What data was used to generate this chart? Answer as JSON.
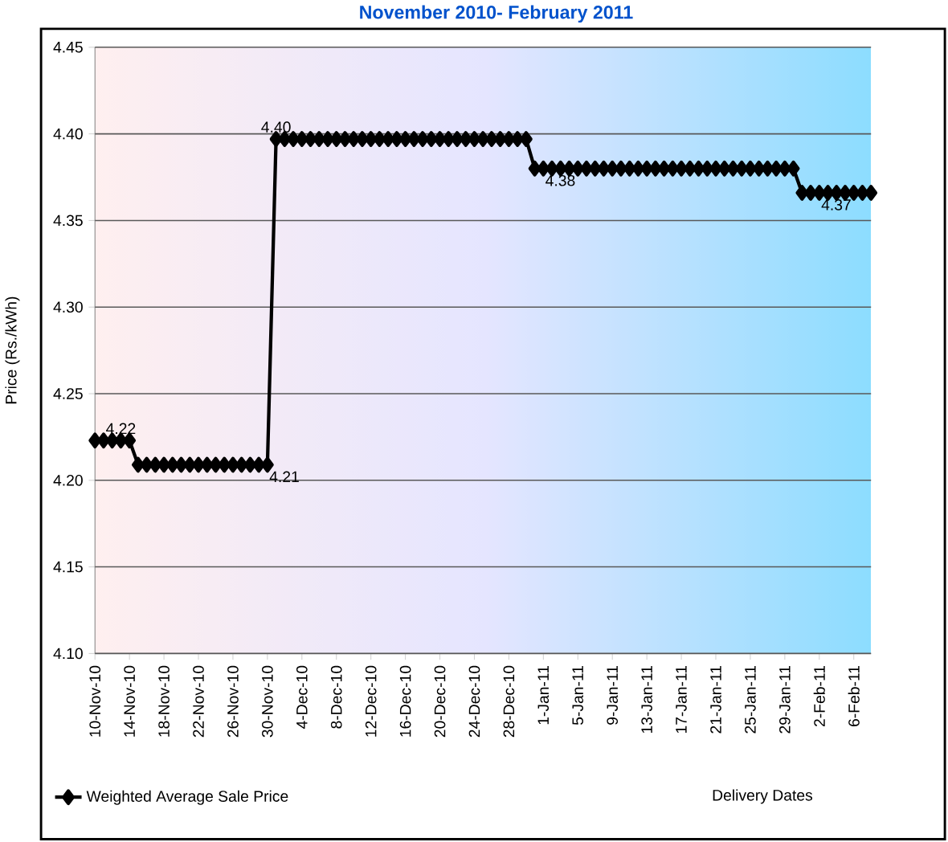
{
  "chart_data": {
    "type": "line",
    "title": "November 2010- February 2011",
    "xlabel": "Delivery Dates",
    "ylabel": "Price (Rs./kWh)",
    "x": [
      "2010-11-10",
      "2010-11-11",
      "2010-11-12",
      "2010-11-13",
      "2010-11-14",
      "2010-11-15",
      "2010-11-16",
      "2010-11-17",
      "2010-11-18",
      "2010-11-19",
      "2010-11-20",
      "2010-11-21",
      "2010-11-22",
      "2010-11-23",
      "2010-11-24",
      "2010-11-25",
      "2010-11-26",
      "2010-11-27",
      "2010-11-28",
      "2010-11-29",
      "2010-11-30",
      "2010-12-01",
      "2010-12-02",
      "2010-12-03",
      "2010-12-04",
      "2010-12-05",
      "2010-12-06",
      "2010-12-07",
      "2010-12-08",
      "2010-12-09",
      "2010-12-10",
      "2010-12-11",
      "2010-12-12",
      "2010-12-13",
      "2010-12-14",
      "2010-12-15",
      "2010-12-16",
      "2010-12-17",
      "2010-12-18",
      "2010-12-19",
      "2010-12-20",
      "2010-12-21",
      "2010-12-22",
      "2010-12-23",
      "2010-12-24",
      "2010-12-25",
      "2010-12-26",
      "2010-12-27",
      "2010-12-28",
      "2010-12-29",
      "2010-12-30",
      "2010-12-31",
      "2011-01-01",
      "2011-01-02",
      "2011-01-03",
      "2011-01-04",
      "2011-01-05",
      "2011-01-06",
      "2011-01-07",
      "2011-01-08",
      "2011-01-09",
      "2011-01-10",
      "2011-01-11",
      "2011-01-12",
      "2011-01-13",
      "2011-01-14",
      "2011-01-15",
      "2011-01-16",
      "2011-01-17",
      "2011-01-18",
      "2011-01-19",
      "2011-01-20",
      "2011-01-21",
      "2011-01-22",
      "2011-01-23",
      "2011-01-24",
      "2011-01-25",
      "2011-01-26",
      "2011-01-27",
      "2011-01-28",
      "2011-01-29",
      "2011-01-30",
      "2011-01-31",
      "2011-02-01",
      "2011-02-02",
      "2011-02-03",
      "2011-02-04",
      "2011-02-05",
      "2011-02-06",
      "2011-02-07",
      "2011-02-08"
    ],
    "series": [
      {
        "name": "Weighted Average Sale Price",
        "color": "#000000",
        "values": [
          4.223,
          4.223,
          4.223,
          4.223,
          4.223,
          4.209,
          4.209,
          4.209,
          4.209,
          4.209,
          4.209,
          4.209,
          4.209,
          4.209,
          4.209,
          4.209,
          4.209,
          4.209,
          4.209,
          4.209,
          4.209,
          4.397,
          4.397,
          4.397,
          4.397,
          4.397,
          4.397,
          4.397,
          4.397,
          4.397,
          4.397,
          4.397,
          4.397,
          4.397,
          4.397,
          4.397,
          4.397,
          4.397,
          4.397,
          4.397,
          4.397,
          4.397,
          4.397,
          4.397,
          4.397,
          4.397,
          4.397,
          4.397,
          4.397,
          4.397,
          4.397,
          4.38,
          4.38,
          4.38,
          4.38,
          4.38,
          4.38,
          4.38,
          4.38,
          4.38,
          4.38,
          4.38,
          4.38,
          4.38,
          4.38,
          4.38,
          4.38,
          4.38,
          4.38,
          4.38,
          4.38,
          4.38,
          4.38,
          4.38,
          4.38,
          4.38,
          4.38,
          4.38,
          4.38,
          4.38,
          4.38,
          4.38,
          4.366,
          4.366,
          4.366,
          4.366,
          4.366,
          4.366,
          4.366,
          4.366,
          4.366
        ],
        "value_labels": [
          null,
          null,
          null,
          "4.22",
          null,
          null,
          null,
          null,
          null,
          null,
          null,
          null,
          null,
          null,
          null,
          null,
          null,
          null,
          null,
          null,
          "4.21",
          "4.40",
          null,
          null,
          null,
          null,
          null,
          null,
          null,
          null,
          null,
          null,
          null,
          null,
          null,
          null,
          null,
          null,
          null,
          null,
          null,
          null,
          null,
          null,
          null,
          null,
          null,
          null,
          null,
          null,
          null,
          null,
          "4.38",
          null,
          null,
          null,
          null,
          null,
          null,
          null,
          null,
          null,
          null,
          null,
          null,
          null,
          null,
          null,
          null,
          null,
          null,
          null,
          null,
          null,
          null,
          null,
          null,
          null,
          null,
          null,
          null,
          null,
          null,
          null,
          "4.37",
          null,
          null,
          null,
          null,
          null,
          null
        ]
      }
    ],
    "xlim": [
      "2010-11-10",
      "2011-02-08"
    ],
    "xticks": [
      {
        "value": "2010-11-10",
        "label": "10-Nov-10"
      },
      {
        "value": "2010-11-14",
        "label": "14-Nov-10"
      },
      {
        "value": "2010-11-18",
        "label": "18-Nov-10"
      },
      {
        "value": "2010-11-22",
        "label": "22-Nov-10"
      },
      {
        "value": "2010-11-26",
        "label": "26-Nov-10"
      },
      {
        "value": "2010-11-30",
        "label": "30-Nov-10"
      },
      {
        "value": "2010-12-04",
        "label": "4-Dec-10"
      },
      {
        "value": "2010-12-08",
        "label": "8-Dec-10"
      },
      {
        "value": "2010-12-12",
        "label": "12-Dec-10"
      },
      {
        "value": "2010-12-16",
        "label": "16-Dec-10"
      },
      {
        "value": "2010-12-20",
        "label": "20-Dec-10"
      },
      {
        "value": "2010-12-24",
        "label": "24-Dec-10"
      },
      {
        "value": "2010-12-28",
        "label": "28-Dec-10"
      },
      {
        "value": "2011-01-01",
        "label": "1-Jan-11"
      },
      {
        "value": "2011-01-05",
        "label": "5-Jan-11"
      },
      {
        "value": "2011-01-09",
        "label": "9-Jan-11"
      },
      {
        "value": "2011-01-13",
        "label": "13-Jan-11"
      },
      {
        "value": "2011-01-17",
        "label": "17-Jan-11"
      },
      {
        "value": "2011-01-21",
        "label": "21-Jan-11"
      },
      {
        "value": "2011-01-25",
        "label": "25-Jan-11"
      },
      {
        "value": "2011-01-29",
        "label": "29-Jan-11"
      },
      {
        "value": "2011-02-02",
        "label": "2-Feb-11"
      },
      {
        "value": "2011-02-06",
        "label": "6-Feb-11"
      }
    ],
    "ylim": [
      4.1,
      4.45
    ],
    "yticks": [
      {
        "value": 4.1,
        "label": "4.10"
      },
      {
        "value": 4.15,
        "label": "4.15"
      },
      {
        "value": 4.2,
        "label": "4.20"
      },
      {
        "value": 4.25,
        "label": "4.25"
      },
      {
        "value": 4.3,
        "label": "4.30"
      },
      {
        "value": 4.35,
        "label": "4.35"
      },
      {
        "value": 4.4,
        "label": "4.40"
      },
      {
        "value": 4.45,
        "label": "4.45"
      }
    ],
    "grid": "y",
    "legend": "bottom",
    "marker": "diamond",
    "line_style": "solid"
  }
}
